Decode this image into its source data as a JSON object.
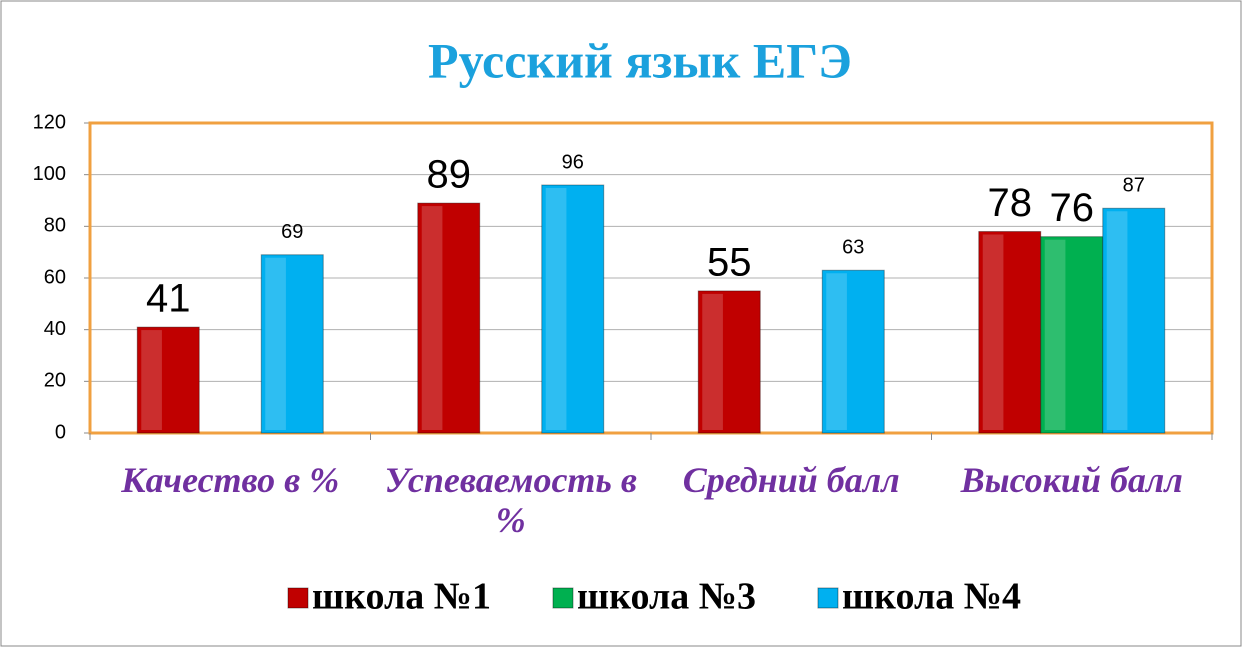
{
  "chart_data": {
    "type": "bar",
    "title": "Русский язык ЕГЭ",
    "categories": [
      "Качество в %",
      "Успеваемость в %",
      "Средний балл",
      "Высокий балл"
    ],
    "series": [
      {
        "name": "школа №1",
        "color": "#c00000",
        "values": [
          41,
          89,
          55,
          78
        ]
      },
      {
        "name": "школа №3",
        "color": "#00b050",
        "values": [
          null,
          null,
          null,
          76
        ]
      },
      {
        "name": "школа №4",
        "color": "#00b0f0",
        "values": [
          69,
          96,
          63,
          87
        ]
      }
    ],
    "ylim": [
      0,
      120
    ],
    "yticks": [
      0,
      20,
      40,
      60,
      80,
      100,
      120
    ],
    "grid": true,
    "legend": "bottom"
  }
}
